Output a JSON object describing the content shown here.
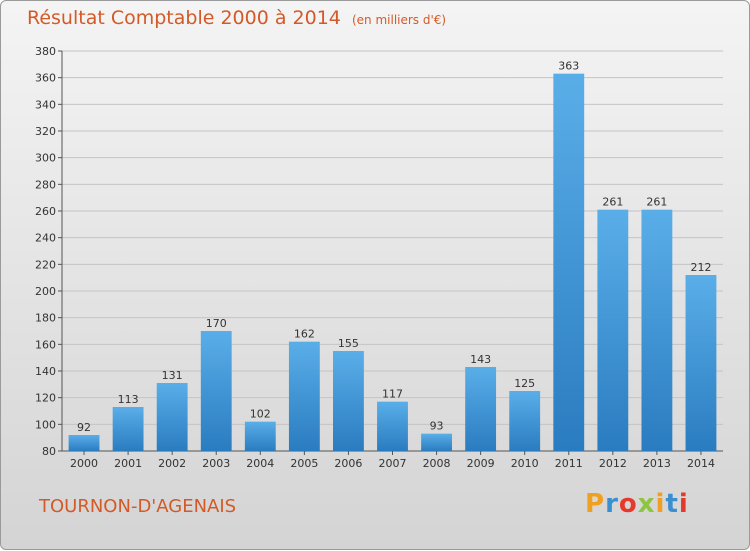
{
  "title": "Résultat Comptable 2000 à 2014",
  "unit": "(en milliers d'€)",
  "commune": "TOURNON-D'AGENAIS",
  "logo": {
    "letters": [
      "P",
      "r",
      "o",
      "x",
      "i",
      "t",
      "i"
    ],
    "colors": [
      "#f0a020",
      "#3a8fd0",
      "#e53a2a",
      "#8cc63f",
      "#f0a020",
      "#3a8fd0",
      "#e53a2a"
    ]
  },
  "chart_data": {
    "type": "bar",
    "title": "Résultat Comptable 2000 à 2014",
    "categories": [
      "2000",
      "2001",
      "2002",
      "2003",
      "2004",
      "2005",
      "2006",
      "2007",
      "2008",
      "2009",
      "2010",
      "2011",
      "2012",
      "2013",
      "2014"
    ],
    "values": [
      92,
      113,
      131,
      170,
      102,
      162,
      155,
      117,
      93,
      143,
      125,
      363,
      261,
      261,
      212
    ],
    "ylim": [
      80,
      380
    ],
    "yticks": [
      80,
      100,
      120,
      140,
      160,
      180,
      200,
      220,
      240,
      260,
      280,
      300,
      320,
      340,
      360,
      380
    ],
    "grid": true,
    "bar_color_top": "#5aaee8",
    "bar_color_bottom": "#2a7cc0"
  }
}
